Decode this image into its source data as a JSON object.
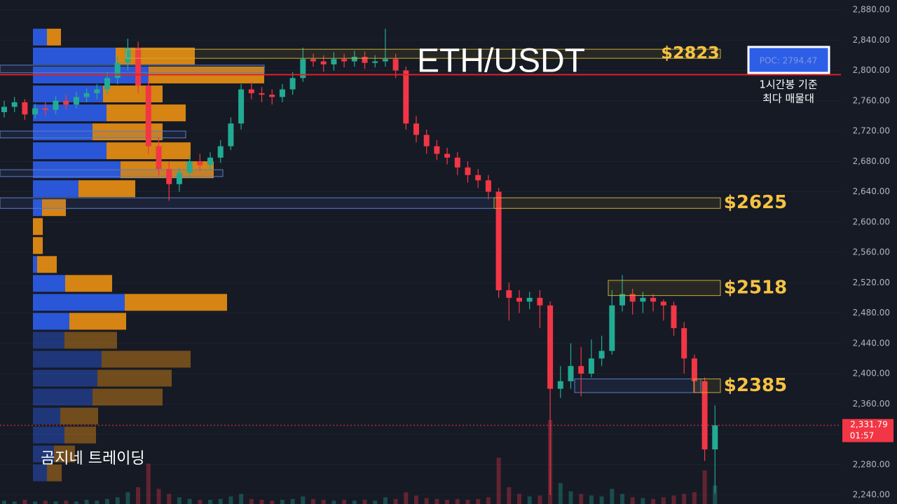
{
  "chart_data": {
    "type": "candlestick",
    "title": "ETH/USDT",
    "watermark": "곰지네 트레이딩",
    "ylim": [
      2240,
      2880
    ],
    "yticks": [
      {
        "value": 2240,
        "label": "2,240.00"
      },
      {
        "value": 2280,
        "label": "2,280.00"
      },
      {
        "value": 2320,
        "label": "2,320.00"
      },
      {
        "value": 2360,
        "label": "2,360.00"
      },
      {
        "value": 2400,
        "label": "2,400.00"
      },
      {
        "value": 2440,
        "label": "2,440.00"
      },
      {
        "value": 2480,
        "label": "2,480.00"
      },
      {
        "value": 2520,
        "label": "2,520.00"
      },
      {
        "value": 2560,
        "label": "2,560.00"
      },
      {
        "value": 2600,
        "label": "2,600.00"
      },
      {
        "value": 2640,
        "label": "2,640.00"
      },
      {
        "value": 2680,
        "label": "2,680.00"
      },
      {
        "value": 2720,
        "label": "2,720.00"
      },
      {
        "value": 2760,
        "label": "2,760.00"
      },
      {
        "value": 2800,
        "label": "2,800.00"
      },
      {
        "value": 2840,
        "label": "2,840.00"
      },
      {
        "value": 2880,
        "label": "2,880.00"
      }
    ],
    "up_color": "#22ab94",
    "down_color": "#f23645",
    "candles": {
      "open": [
        2745,
        2752,
        2758,
        2742,
        2750,
        2748,
        2760,
        2755,
        2765,
        2770,
        2775,
        2790,
        2810,
        2830,
        2780,
        2700,
        2670,
        2650,
        2665,
        2680,
        2675,
        2685,
        2700,
        2730,
        2775,
        2770,
        2768,
        2765,
        2775,
        2790,
        2815,
        2812,
        2808,
        2815,
        2812,
        2818,
        2810,
        2812,
        2815,
        2800,
        2730,
        2715,
        2700,
        2690,
        2685,
        2672,
        2662,
        2655,
        2640,
        2510,
        2500,
        2495,
        2500,
        2490,
        2380,
        2390,
        2410,
        2400,
        2420,
        2430,
        2490,
        2505,
        2495,
        2500,
        2495,
        2490,
        2460,
        2420,
        2390,
        2300
      ],
      "high": [
        2760,
        2765,
        2762,
        2756,
        2758,
        2766,
        2768,
        2772,
        2776,
        2782,
        2798,
        2818,
        2842,
        2838,
        2790,
        2712,
        2680,
        2672,
        2688,
        2690,
        2692,
        2708,
        2738,
        2782,
        2785,
        2778,
        2775,
        2782,
        2798,
        2830,
        2822,
        2820,
        2824,
        2822,
        2826,
        2825,
        2820,
        2855,
        2822,
        2805,
        2740,
        2722,
        2708,
        2698,
        2692,
        2680,
        2670,
        2662,
        2645,
        2520,
        2510,
        2508,
        2510,
        2495,
        2410,
        2440,
        2435,
        2445,
        2450,
        2510,
        2530,
        2512,
        2508,
        2505,
        2498,
        2495,
        2468,
        2425,
        2395,
        2358
      ],
      "low": [
        2738,
        2745,
        2735,
        2736,
        2740,
        2742,
        2748,
        2750,
        2758,
        2762,
        2768,
        2782,
        2800,
        2770,
        2690,
        2660,
        2628,
        2640,
        2658,
        2668,
        2668,
        2678,
        2695,
        2722,
        2762,
        2758,
        2755,
        2758,
        2768,
        2785,
        2805,
        2798,
        2800,
        2804,
        2805,
        2802,
        2804,
        2805,
        2790,
        2722,
        2705,
        2690,
        2682,
        2676,
        2662,
        2652,
        2645,
        2630,
        2500,
        2470,
        2480,
        2485,
        2460,
        2240,
        2368,
        2380,
        2370,
        2395,
        2410,
        2425,
        2482,
        2478,
        2480,
        2482,
        2470,
        2450,
        2400,
        2375,
        2285,
        2242
      ],
      "close": [
        2752,
        2758,
        2742,
        2750,
        2748,
        2760,
        2755,
        2765,
        2770,
        2775,
        2790,
        2810,
        2830,
        2780,
        2700,
        2670,
        2650,
        2665,
        2680,
        2675,
        2685,
        2700,
        2730,
        2775,
        2770,
        2768,
        2765,
        2775,
        2790,
        2815,
        2812,
        2808,
        2815,
        2812,
        2818,
        2810,
        2812,
        2815,
        2800,
        2730,
        2715,
        2700,
        2690,
        2685,
        2672,
        2662,
        2655,
        2640,
        2510,
        2500,
        2495,
        2500,
        2490,
        2380,
        2390,
        2410,
        2400,
        2420,
        2430,
        2490,
        2505,
        2495,
        2500,
        2495,
        2490,
        2460,
        2420,
        2390,
        2300,
        2331.79
      ]
    },
    "volume": [
      4,
      3,
      5,
      3,
      4,
      3,
      4,
      3,
      5,
      4,
      6,
      8,
      14,
      20,
      48,
      18,
      12,
      8,
      6,
      5,
      5,
      6,
      9,
      12,
      6,
      5,
      4,
      5,
      6,
      9,
      6,
      5,
      4,
      5,
      4,
      5,
      4,
      8,
      6,
      14,
      10,
      7,
      6,
      5,
      6,
      5,
      6,
      8,
      55,
      20,
      12,
      9,
      10,
      100,
      25,
      15,
      12,
      10,
      9,
      18,
      12,
      8,
      7,
      6,
      8,
      10,
      12,
      14,
      40,
      22
    ],
    "volume_lim": [
      0,
      100
    ],
    "volume_profile": {
      "prices": [
        2844,
        2819,
        2794,
        2769,
        2744,
        2719,
        2694,
        2669,
        2644,
        2619,
        2594,
        2569,
        2544,
        2519,
        2494,
        2469,
        2444,
        2419,
        2394,
        2369,
        2344,
        2319,
        2294,
        2269
      ],
      "buy": [
        20,
        118,
        165,
        100,
        105,
        85,
        105,
        125,
        65,
        13,
        0,
        0,
        6,
        46,
        131,
        52,
        45,
        98,
        92,
        85,
        39,
        45,
        30,
        20
      ],
      "sell": [
        20,
        113,
        165,
        85,
        113,
        100,
        120,
        133,
        81,
        34,
        14,
        14,
        28,
        67,
        146,
        81,
        75,
        127,
        106,
        100,
        54,
        45,
        30,
        21
      ],
      "xlim": [
        0,
        330
      ],
      "value_area_low": 2456,
      "buy_color": "#2b5be0",
      "sell_color": "#e08a12"
    },
    "zones": [
      {
        "label": "$2823",
        "low": 2816,
        "high": 2828
      },
      {
        "label": "$2625",
        "low": 2618,
        "high": 2632
      },
      {
        "label": "$2518",
        "low": 2503,
        "high": 2523
      },
      {
        "label": "$2385",
        "low": 2375,
        "high": 2393
      }
    ],
    "support_zones": [
      {
        "low": 2797,
        "high": 2807
      },
      {
        "low": 2711,
        "high": 2720
      },
      {
        "low": 2660,
        "high": 2669
      },
      {
        "low": 2618,
        "high": 2632
      },
      {
        "low": 2375,
        "high": 2393
      }
    ],
    "poc": 2794.47,
    "poc_label": "POC: 2794.47",
    "poc_note": [
      "1시간봉 기준",
      "최다 매물대"
    ],
    "last_price": 2331.79,
    "last_price_label": "2,331.79",
    "countdown": "01:57"
  }
}
